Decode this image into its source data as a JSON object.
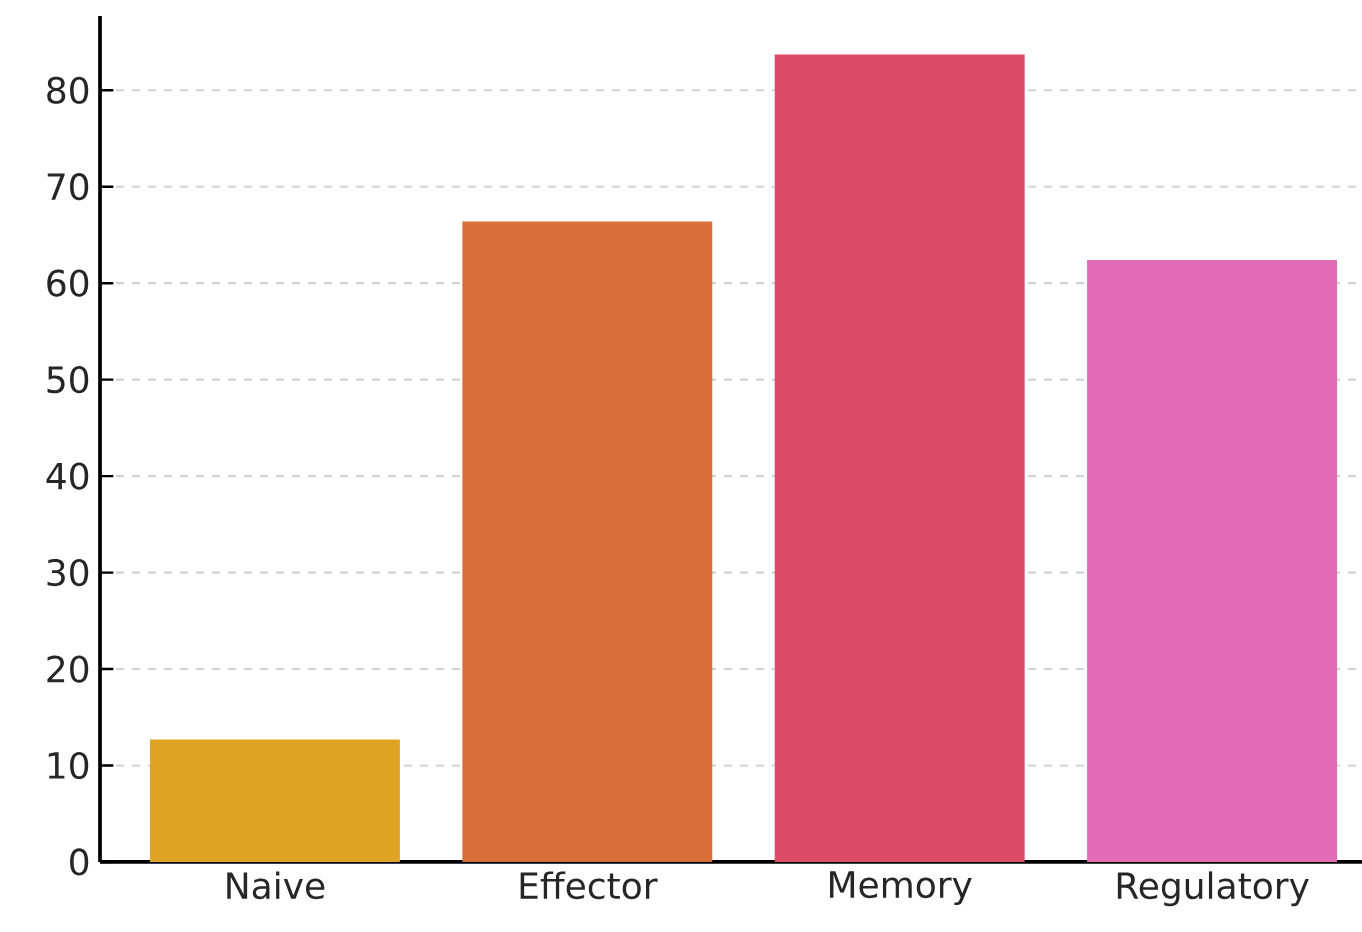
{
  "chart_data": {
    "type": "bar",
    "categories": [
      "Naive",
      "Effector",
      "Memory",
      "Regulatory"
    ],
    "values": [
      12.7,
      66.4,
      83.7,
      62.4
    ],
    "colors": [
      "#dfa323",
      "#d86f3b",
      "#db4a66",
      "#e26bb6"
    ],
    "ylim": [
      0,
      87.7
    ],
    "yticks": [
      0,
      10,
      20,
      30,
      40,
      50,
      60,
      70,
      80
    ],
    "grid": "y"
  }
}
